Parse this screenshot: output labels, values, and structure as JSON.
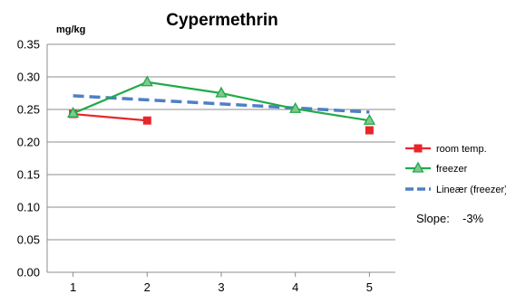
{
  "chart_data": {
    "type": "line",
    "title": "Cypermethrin",
    "unit_label": "mg/kg",
    "xlabel": "",
    "ylabel": "",
    "x": [
      1,
      2,
      3,
      4,
      5
    ],
    "x_tick_labels": [
      "1",
      "2",
      "3",
      "4",
      "5"
    ],
    "xlim": [
      0.65,
      5.35
    ],
    "ylim": [
      0,
      0.35
    ],
    "y_ticks": [
      0,
      0.05,
      0.1,
      0.15,
      0.2,
      0.25,
      0.3,
      0.35
    ],
    "y_tick_labels": [
      "0.00",
      "0.05",
      "0.10",
      "0.15",
      "0.20",
      "0.25",
      "0.30",
      "0.35"
    ],
    "grid": true,
    "legend_position": "right",
    "series": [
      {
        "name": "room temp.",
        "color": "#e8262a",
        "marker": "square",
        "connect": [
          0,
          1
        ],
        "points": [
          [
            1,
            0.243
          ],
          [
            2,
            0.233
          ],
          [
            5,
            0.218
          ]
        ]
      },
      {
        "name": "freezer",
        "color": "#20aa4a",
        "marker": "triangle",
        "marker_fill": "#7ec98f",
        "points": [
          [
            1,
            0.244
          ],
          [
            2,
            0.292
          ],
          [
            3,
            0.275
          ],
          [
            4,
            0.251
          ],
          [
            5,
            0.233
          ]
        ]
      },
      {
        "name": "Lineær (freezer)",
        "color": "#4f7fc6",
        "style": "dashed",
        "points": [
          [
            1,
            0.271
          ],
          [
            5,
            0.246
          ]
        ]
      }
    ],
    "annotation": {
      "label": "Slope:",
      "value": "-3%"
    }
  }
}
